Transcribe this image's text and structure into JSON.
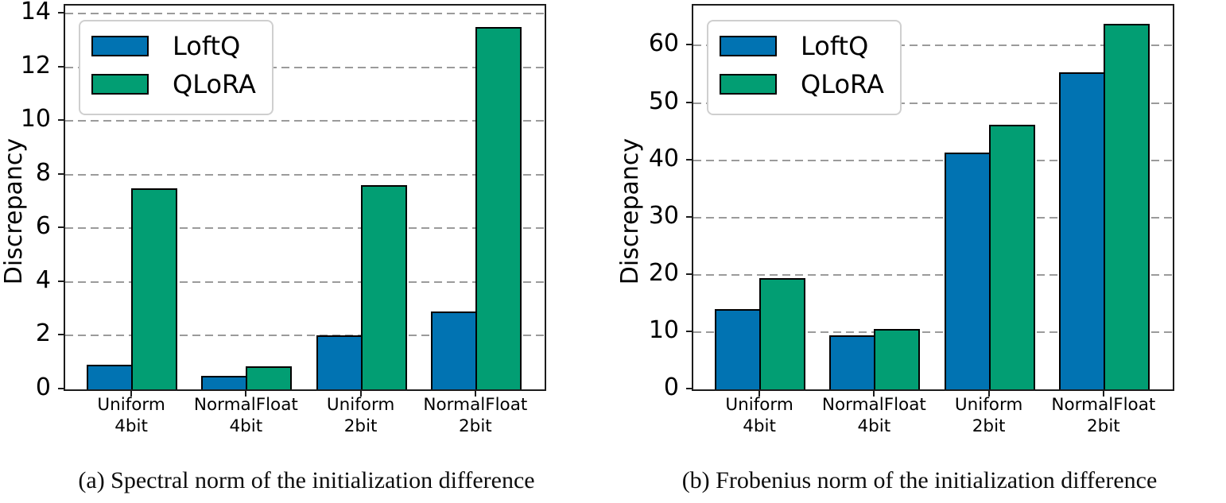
{
  "figure": {
    "description": "Two grouped bar charts comparing LoftQ and QLoRA initialization discrepancy",
    "colors": {
      "loftq_blue": "#0173b2",
      "qlora_green": "#029e73",
      "bar_edge": "#000000",
      "gridline_gray": "#9b9b9b",
      "spine_dark": "#1c1c1c",
      "legend_border": "#cfcfcf"
    }
  },
  "chart_data": [
    {
      "type": "bar",
      "title": "(a) Spectral norm of the initialization difference",
      "xlabel": "",
      "ylabel": "Discrepancy",
      "categories": [
        "Uniform\n4bit",
        "NormalFloat\n4bit",
        "Uniform\n2bit",
        "NormalFloat\n2bit"
      ],
      "series": [
        {
          "name": "LoftQ",
          "color": "#0173b2",
          "values": [
            0.93,
            0.5,
            2.0,
            2.9
          ]
        },
        {
          "name": "QLoRA",
          "color": "#029e73",
          "values": [
            7.5,
            0.85,
            7.6,
            13.5
          ]
        }
      ],
      "ylim": [
        0,
        14.3
      ],
      "yticks": [
        0,
        2,
        4,
        6,
        8,
        10,
        12,
        14
      ],
      "grid": "horizontal-dashed",
      "legend_position": "upper-left"
    },
    {
      "type": "bar",
      "title": "(b) Frobenius norm of the initialization difference",
      "xlabel": "",
      "ylabel": "Discrepancy",
      "categories": [
        "Uniform\n4bit",
        "NormalFloat\n4bit",
        "Uniform\n2bit",
        "NormalFloat\n2bit"
      ],
      "series": [
        {
          "name": "LoftQ",
          "color": "#0173b2",
          "values": [
            14.0,
            9.4,
            41.3,
            55.3
          ]
        },
        {
          "name": "QLoRA",
          "color": "#029e73",
          "values": [
            19.4,
            10.6,
            46.2,
            63.8
          ]
        }
      ],
      "ylim": [
        0,
        67
      ],
      "yticks": [
        0,
        10,
        20,
        30,
        40,
        50,
        60
      ],
      "grid": "horizontal-dashed",
      "legend_position": "upper-left"
    }
  ]
}
